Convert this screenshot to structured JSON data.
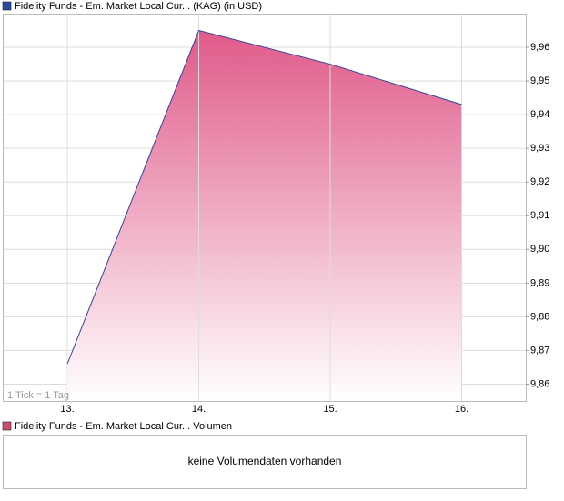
{
  "chart_data": {
    "type": "area",
    "title": "Fidelity Funds - Em. Market Local Cur... (KAG) (in USD)",
    "title_marker_color": "#2a4aa0",
    "categories": [
      "13.",
      "14.",
      "15.",
      "16."
    ],
    "values": [
      9.866,
      9.965,
      9.955,
      9.943
    ],
    "color": "#e05a8a",
    "line_color": "#334499",
    "ylim": [
      9.855,
      9.97
    ],
    "yticks": [
      {
        "value": 9.86,
        "label": "9,86"
      },
      {
        "value": 9.87,
        "label": "9,87"
      },
      {
        "value": 9.88,
        "label": "9,88"
      },
      {
        "value": 9.89,
        "label": "9,89"
      },
      {
        "value": 9.9,
        "label": "9,90"
      },
      {
        "value": 9.91,
        "label": "9,91"
      },
      {
        "value": 9.92,
        "label": "9,92"
      },
      {
        "value": 9.93,
        "label": "9,93"
      },
      {
        "value": 9.94,
        "label": "9,94"
      },
      {
        "value": 9.95,
        "label": "9,95"
      },
      {
        "value": 9.96,
        "label": "9,96"
      }
    ],
    "grid": true,
    "annotation": "1 Tick = 1 Tag",
    "volume_panel": {
      "title": "Fidelity Funds - Em. Market Local Cur... Volumen",
      "title_marker_color": "#c8506a",
      "message": "keine Volumendaten vorhanden"
    }
  }
}
